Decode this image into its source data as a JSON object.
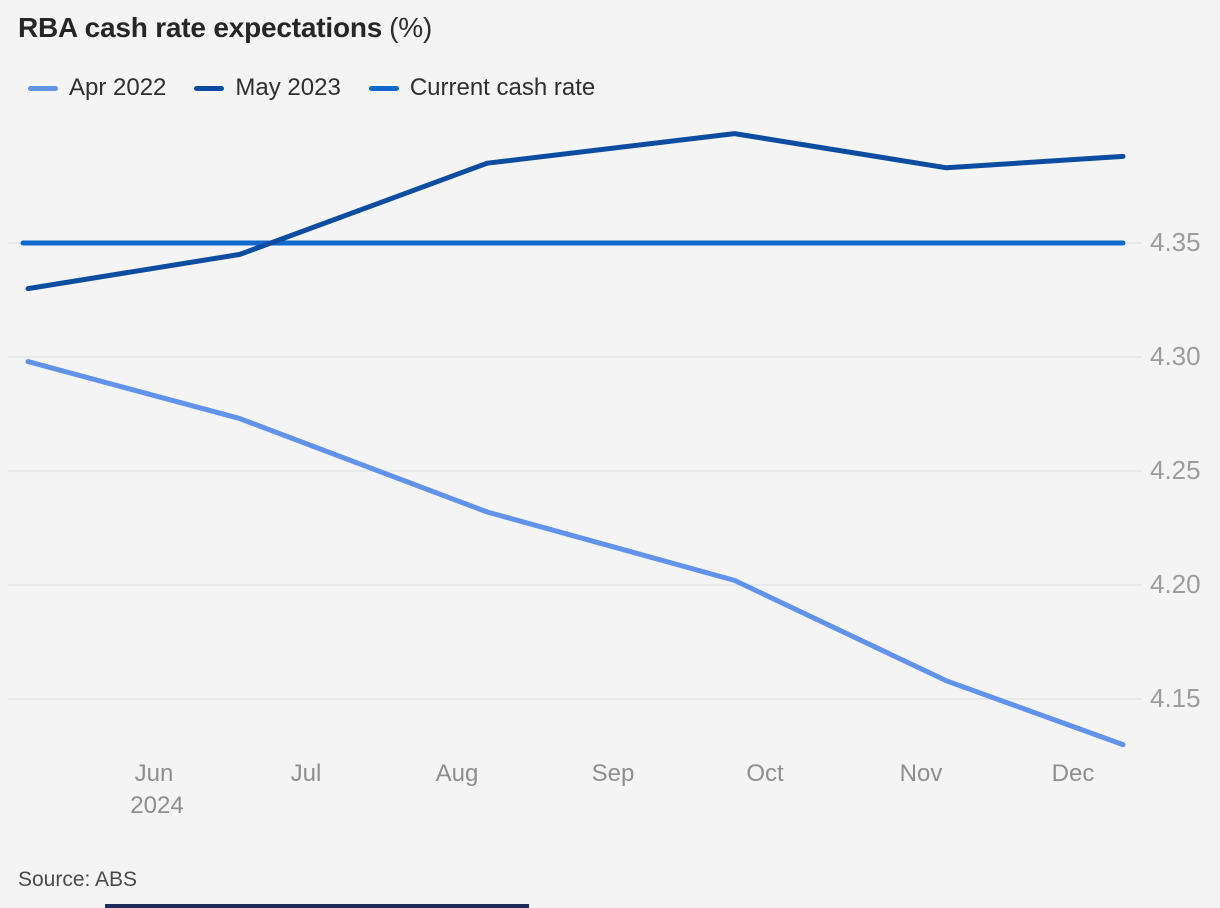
{
  "title": {
    "main": "RBA cash rate expectations",
    "unit": "(%)"
  },
  "source": "Source: ABS",
  "legend": [
    {
      "label": "Apr 2022",
      "color": "#6293ea"
    },
    {
      "label": "May 2023",
      "color": "#0d4da1"
    },
    {
      "label": "Current cash rate",
      "color": "#1169cb"
    }
  ],
  "colors": {
    "background": "#f4f4f4",
    "grid": "#e3e3e3",
    "title_text": "#262626",
    "legend_text": "#2f2f2f",
    "axis_label": "#9c9c9c",
    "x_axis_label": "#8e8e8e",
    "source_text": "#4a4a4a",
    "bottom_accent": "#1d2b5a",
    "series_apr_2022": "#6293ea",
    "series_may_2023": "#0d4da1",
    "series_current_cash_rate": "#1169cb"
  },
  "chart_data": {
    "type": "line",
    "title": "RBA cash rate expectations (%)",
    "xlabel": "",
    "ylabel": "",
    "unit": "%",
    "grid": true,
    "legend_position": "top",
    "x_days": [
      0,
      42,
      91,
      140,
      182,
      217
    ],
    "series": [
      {
        "name": "Current cash rate",
        "color": "#1169cb",
        "constant": 4.35
      },
      {
        "name": "Apr 2022",
        "color": "#6293ea",
        "values": [
          4.298,
          4.273,
          4.232,
          4.202,
          4.158,
          4.13
        ]
      },
      {
        "name": "May 2023",
        "color": "#0d4da1",
        "values": [
          4.33,
          4.345,
          4.385,
          4.398,
          4.383,
          4.388
        ]
      }
    ],
    "yticks": [
      4.35,
      4.3,
      4.25,
      4.2,
      4.15
    ],
    "ylim": [
      4.125,
      4.41
    ],
    "xticks": {
      "days": [
        25,
        55,
        85,
        116,
        146,
        177,
        207
      ],
      "labels": [
        "Jun",
        "Jul",
        "Aug",
        "Sep",
        "Oct",
        "Nov",
        "Dec"
      ],
      "year_label": "2024",
      "year_under": "Jun"
    }
  }
}
